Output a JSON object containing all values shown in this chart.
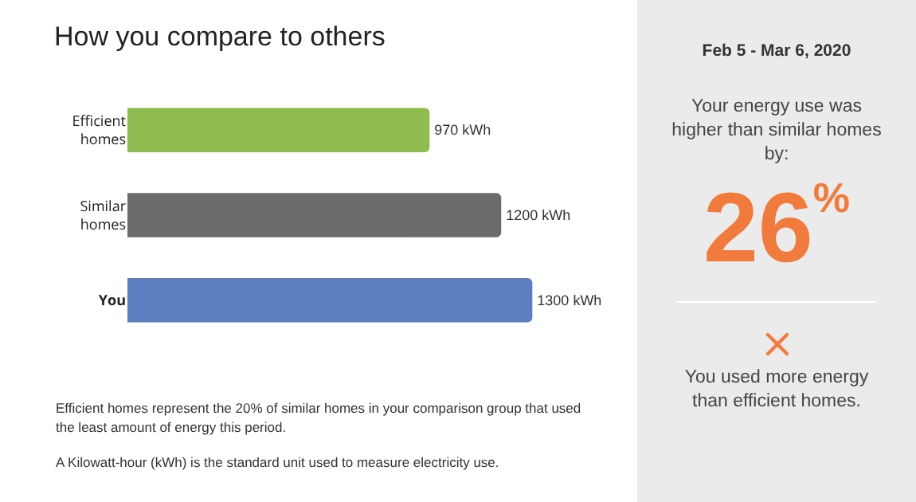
{
  "chart_data": [
    {
      "type": "bar",
      "orientation": "horizontal",
      "title": "How you compare to others",
      "categories": [
        "Efficient homes",
        "Similar homes",
        "You"
      ],
      "values": [
        970,
        1200,
        1300
      ],
      "colors": [
        "#8fbc4f",
        "#6b6b6b",
        "#5b7fc0"
      ],
      "value_labels": [
        "970 kWh",
        "1200 kWh",
        "1300 kWh"
      ],
      "tick_labels": "y",
      "grid": false,
      "legend": false,
      "annotations": [
        "Efficient homes represent the 20% of similar homes in your comparison group that used the least amount of energy this period.",
        "A Kilowatt-hour (kWh) is the standard unit used to measure electricity use."
      ]
    },
    {
      "type": "other",
      "title": "Feb 5 - Mar 6, 2020",
      "annotations": [
        "Your energy use was higher than similar homes by:",
        "26$^{%}$",
        "You used more energy than efficient homes."
      ]
    }
  ]
}
